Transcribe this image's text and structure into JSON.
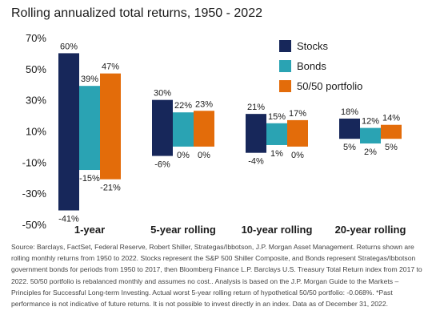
{
  "chart_data": {
    "type": "floating-bar",
    "title": "Rolling annualized total returns, 1950 - 2022",
    "categories": [
      "1-year",
      "5-year rolling",
      "10-year rolling",
      "20-year rolling"
    ],
    "series": [
      {
        "name": "Stocks",
        "color": "#17275a",
        "max": [
          60,
          30,
          21,
          18
        ],
        "min": [
          -41,
          -6,
          -4,
          5
        ],
        "max_labels": [
          "60%",
          "30%",
          "21%",
          "18%"
        ],
        "min_labels": [
          "-41%",
          "-6%",
          "-4%",
          "5%"
        ]
      },
      {
        "name": "Bonds",
        "color": "#2aa3b3",
        "max": [
          39,
          22,
          15,
          12
        ],
        "min": [
          -15,
          0,
          1,
          2
        ],
        "max_labels": [
          "39%",
          "22%",
          "15%",
          "12%"
        ],
        "min_labels": [
          "-15%",
          "0%",
          "1%",
          "2%"
        ]
      },
      {
        "name": "50/50 portfolio",
        "color": "#e36c0a",
        "max": [
          47,
          23,
          17,
          14
        ],
        "min": [
          -21,
          0,
          0,
          5
        ],
        "max_labels": [
          "47%",
          "23%",
          "17%",
          "14%"
        ],
        "min_labels": [
          "-21%",
          "0%",
          "0%",
          "5%"
        ]
      }
    ],
    "yticks": [
      70,
      50,
      30,
      10,
      -10,
      -30,
      -50
    ],
    "ytick_labels": [
      "70%",
      "50%",
      "30%",
      "10%",
      "-10%",
      "-30%",
      "-50%"
    ],
    "ylim": [
      -50,
      70
    ],
    "grid": false,
    "legend": "top-right"
  },
  "source_text": "Source: Barclays, FactSet, Federal Reserve, Robert Shiller, Strategas/Ibbotson, J.P. Morgan Asset Management. Returns shown are rolling monthly returns from 1950 to 2022. Stocks represent the S&P 500 Shiller Composite, and Bonds represent Strategas/Ibbotson government bonds for periods from 1950 to 2017, then Bloomberg Finance L.P. Barclays U.S. Treasury Total Return index from 2017 to 2022. 50/50 portfolio is rebalanced monthly and assumes no cost.. Analysis is based on the J.P. Morgan Guide to the Markets – Principles for Successful Long-term Investing. Actual worst 5-year rolling return of hypothetical 50/50 portfolio: -0.068%. *Past performance is not indicative of future returns. It is not possible to invest directly in an index. Data as of December 31, 2022."
}
